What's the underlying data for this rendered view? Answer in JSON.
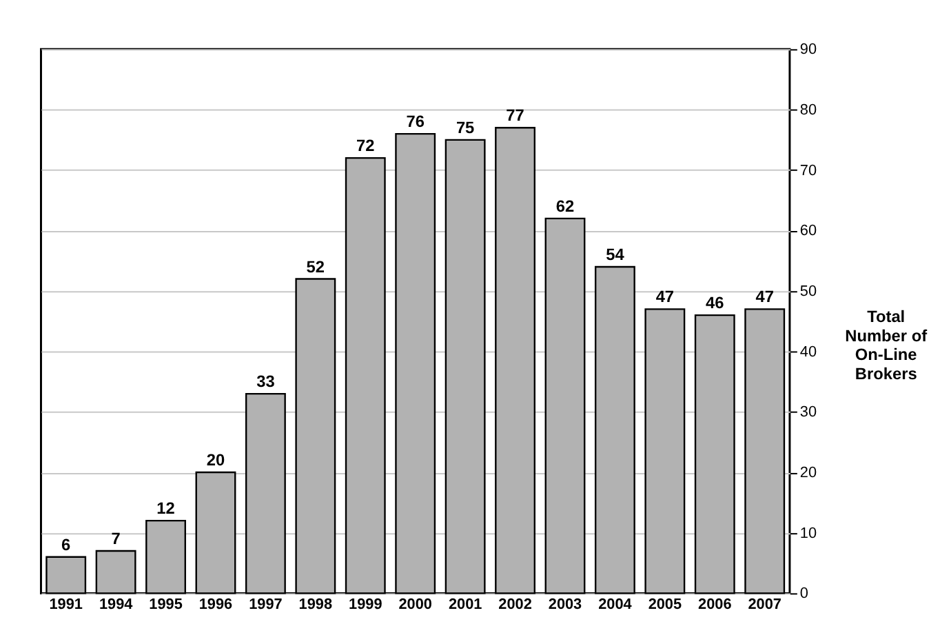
{
  "chart_data": {
    "type": "bar",
    "ylabel": "Total Number of On-Line Brokers",
    "categories": [
      "1991",
      "1994",
      "1995",
      "1996",
      "1997",
      "1998",
      "1999",
      "2000",
      "2001",
      "2002",
      "2003",
      "2004",
      "2005",
      "2006",
      "2007"
    ],
    "values": [
      6,
      7,
      12,
      20,
      33,
      52,
      72,
      76,
      75,
      77,
      62,
      54,
      47,
      46,
      47
    ],
    "color": "#b2b2b2",
    "ylim": [
      0,
      90
    ],
    "yticks": [
      0,
      10,
      20,
      30,
      40,
      50,
      60,
      70,
      80,
      90
    ],
    "grid": "y",
    "data_labels": true
  }
}
